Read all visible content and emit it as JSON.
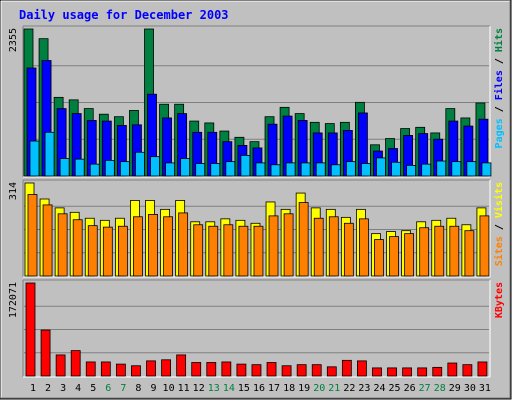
{
  "chart_data": {
    "type": "bar",
    "title": "Daily usage for December 2003",
    "colors": {
      "background": "#c0c0c0",
      "title": "#0000ff",
      "hits": "#008040",
      "files": "#0000ff",
      "pages": "#00c0ff",
      "visits": "#ffff00",
      "sites": "#ff8000",
      "kbytes": "#ff0000",
      "weekday_label": "#000000",
      "weekend_label": "#008040"
    },
    "categories": [
      "1",
      "2",
      "3",
      "4",
      "5",
      "6",
      "7",
      "8",
      "9",
      "10",
      "11",
      "12",
      "13",
      "14",
      "15",
      "16",
      "17",
      "18",
      "19",
      "20",
      "21",
      "22",
      "23",
      "24",
      "25",
      "26",
      "27",
      "28",
      "29",
      "30",
      "31"
    ],
    "weekend_days": [
      "6",
      "7",
      "13",
      "14",
      "20",
      "21",
      "27",
      "28"
    ],
    "panels": [
      {
        "id": "hits-files-pages",
        "scale_label": "2355",
        "ymax": 2355,
        "legend": [
          {
            "text": "Pages",
            "color": "#00c0ff"
          },
          {
            "text": " / ",
            "color": "#000000"
          },
          {
            "text": "Files",
            "color": "#0000ff"
          },
          {
            "text": " / ",
            "color": "#000000"
          },
          {
            "text": "Hits",
            "color": "#008040"
          }
        ],
        "series": [
          {
            "name": "Hits",
            "color": "#008040",
            "values": [
              2355,
              2200,
              1260,
              1220,
              1080,
              990,
              950,
              1050,
              2355,
              1150,
              1150,
              880,
              850,
              720,
              620,
              550,
              950,
              1100,
              1000,
              860,
              840,
              860,
              1180,
              500,
              600,
              760,
              780,
              690,
              1080,
              930,
              1170
            ]
          },
          {
            "name": "Files",
            "color": "#0000ff",
            "values": [
              1730,
              1850,
              1080,
              1000,
              890,
              880,
              810,
              820,
              1310,
              930,
              1000,
              700,
              700,
              550,
              490,
              450,
              830,
              960,
              890,
              690,
              690,
              730,
              1010,
              400,
              440,
              650,
              680,
              590,
              880,
              800,
              910
            ]
          },
          {
            "name": "Pages",
            "color": "#00c0ff",
            "values": [
              560,
              700,
              280,
              270,
              190,
              250,
              230,
              380,
              310,
              210,
              280,
              200,
              200,
              230,
              330,
              210,
              180,
              210,
              210,
              210,
              180,
              230,
              200,
              290,
              220,
              170,
              190,
              240,
              230,
              230,
              210
            ]
          }
        ]
      },
      {
        "id": "visits-sites",
        "scale_label": "314",
        "ymax": 314,
        "legend": [
          {
            "text": "Sites",
            "color": "#ff8000"
          },
          {
            "text": " / ",
            "color": "#000000"
          },
          {
            "text": "Visits",
            "color": "#ffff00"
          }
        ],
        "series": [
          {
            "name": "Visits",
            "color": "#ffff00",
            "values": [
              314,
              260,
              230,
              215,
              195,
              188,
              195,
              255,
              255,
              225,
              255,
              183,
              183,
              193,
              188,
              178,
              250,
              225,
              280,
              230,
              225,
              198,
              225,
              143,
              150,
              153,
              183,
              188,
              195,
              173,
              230
            ]
          },
          {
            "name": "Sites",
            "color": "#ff8000",
            "values": [
              275,
              240,
              210,
              190,
              170,
              165,
              168,
              200,
              208,
              200,
              213,
              173,
              168,
              173,
              168,
              168,
              203,
              210,
              248,
              195,
              200,
              178,
              193,
              123,
              133,
              143,
              163,
              168,
              168,
              153,
              203
            ]
          }
        ]
      },
      {
        "id": "kbytes",
        "scale_label": "172071",
        "ymax": 172071,
        "legend": [
          {
            "text": "KBytes",
            "color": "#ff0000"
          }
        ],
        "series": [
          {
            "name": "KBytes",
            "color": "#ff0000",
            "values": [
              172071,
              85000,
              39000,
              47000,
              26000,
              26000,
              22000,
              19000,
              28000,
              30000,
              39000,
              25000,
              25000,
              26000,
              22000,
              21000,
              25000,
              19000,
              21000,
              21000,
              17000,
              29000,
              28000,
              15000,
              15000,
              15000,
              15000,
              16000,
              24000,
              21000,
              26000
            ]
          }
        ]
      }
    ]
  }
}
